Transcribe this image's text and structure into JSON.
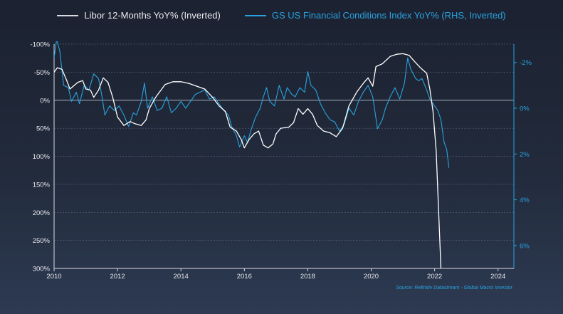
{
  "legend": {
    "series1_label": "Libor 12-Months YoY% (Inverted)",
    "series2_label": "GS US Financial Conditions Index YoY% (RHS, Inverted)"
  },
  "source_note": "Source: Refinitiv Datastream - Global Macro Investor",
  "colors": {
    "libor": "#ffffff",
    "fci": "#29a3e0",
    "grid": "#6b7587",
    "background": "#1f2636"
  },
  "chart_data": {
    "type": "line",
    "title": "",
    "xlabel": "",
    "ylabel": "",
    "xlim": [
      2010,
      2024.5
    ],
    "x_ticks": [
      "2010",
      "2012",
      "2014",
      "2016",
      "2018",
      "2020",
      "2022",
      "2024"
    ],
    "y_left": {
      "inverted": true,
      "lim": [
        -100,
        300
      ],
      "ticks": [
        -100,
        -50,
        0,
        50,
        100,
        150,
        200,
        250,
        300
      ],
      "tick_labels": [
        "-100%",
        "-50%",
        "0%",
        "50%",
        "100%",
        "150%",
        "200%",
        "250%",
        "300%"
      ]
    },
    "y_right": {
      "inverted": true,
      "lim": [
        -2.8,
        7
      ],
      "ticks": [
        -2,
        0,
        2,
        4,
        6
      ],
      "tick_labels": [
        "-2%",
        "0%",
        "2%",
        "4%",
        "6%"
      ]
    },
    "series": [
      {
        "name": "Libor 12-Months YoY% (Inverted)",
        "axis": "left",
        "points": [
          [
            2010.0,
            -50
          ],
          [
            2010.1,
            -58
          ],
          [
            2010.25,
            -55
          ],
          [
            2010.4,
            -35
          ],
          [
            2010.5,
            -20
          ],
          [
            2010.75,
            -32
          ],
          [
            2010.9,
            -35
          ],
          [
            2011.0,
            -20
          ],
          [
            2011.15,
            -18
          ],
          [
            2011.25,
            -5
          ],
          [
            2011.4,
            -18
          ],
          [
            2011.55,
            -40
          ],
          [
            2011.7,
            -32
          ],
          [
            2011.85,
            -5
          ],
          [
            2012.0,
            30
          ],
          [
            2012.2,
            45
          ],
          [
            2012.4,
            38
          ],
          [
            2012.55,
            42
          ],
          [
            2012.75,
            45
          ],
          [
            2012.9,
            35
          ],
          [
            2013.0,
            15
          ],
          [
            2013.2,
            -5
          ],
          [
            2013.5,
            -28
          ],
          [
            2013.75,
            -33
          ],
          [
            2014.0,
            -33
          ],
          [
            2014.25,
            -30
          ],
          [
            2014.5,
            -25
          ],
          [
            2014.75,
            -20
          ],
          [
            2015.0,
            -5
          ],
          [
            2015.2,
            10
          ],
          [
            2015.4,
            20
          ],
          [
            2015.55,
            48
          ],
          [
            2015.75,
            55
          ],
          [
            2015.9,
            70
          ],
          [
            2016.0,
            85
          ],
          [
            2016.15,
            70
          ],
          [
            2016.3,
            60
          ],
          [
            2016.45,
            55
          ],
          [
            2016.6,
            80
          ],
          [
            2016.75,
            85
          ],
          [
            2016.9,
            78
          ],
          [
            2017.0,
            60
          ],
          [
            2017.15,
            50
          ],
          [
            2017.4,
            48
          ],
          [
            2017.55,
            40
          ],
          [
            2017.7,
            15
          ],
          [
            2017.85,
            25
          ],
          [
            2018.0,
            15
          ],
          [
            2018.15,
            25
          ],
          [
            2018.3,
            45
          ],
          [
            2018.5,
            55
          ],
          [
            2018.7,
            58
          ],
          [
            2018.9,
            65
          ],
          [
            2019.1,
            50
          ],
          [
            2019.3,
            10
          ],
          [
            2019.55,
            -15
          ],
          [
            2019.75,
            -30
          ],
          [
            2019.9,
            -40
          ],
          [
            2020.05,
            -25
          ],
          [
            2020.15,
            -60
          ],
          [
            2020.35,
            -65
          ],
          [
            2020.6,
            -78
          ],
          [
            2020.8,
            -82
          ],
          [
            2021.0,
            -83
          ],
          [
            2021.2,
            -80
          ],
          [
            2021.35,
            -70
          ],
          [
            2021.55,
            -58
          ],
          [
            2021.75,
            -48
          ],
          [
            2021.85,
            -20
          ],
          [
            2021.95,
            20
          ],
          [
            2022.05,
            90
          ],
          [
            2022.12,
            190
          ],
          [
            2022.2,
            300
          ]
        ]
      },
      {
        "name": "GS US Financial Conditions Index YoY% (RHS, Inverted)",
        "axis": "right",
        "points": [
          [
            2010.0,
            -2.2
          ],
          [
            2010.08,
            -3.0
          ],
          [
            2010.18,
            -2.5
          ],
          [
            2010.3,
            -1.0
          ],
          [
            2010.45,
            -0.9
          ],
          [
            2010.55,
            -0.3
          ],
          [
            2010.7,
            -0.7
          ],
          [
            2010.8,
            -0.2
          ],
          [
            2010.95,
            -1.0
          ],
          [
            2011.1,
            -0.8
          ],
          [
            2011.25,
            -1.5
          ],
          [
            2011.4,
            -1.3
          ],
          [
            2011.5,
            -0.6
          ],
          [
            2011.6,
            0.3
          ],
          [
            2011.75,
            -0.1
          ],
          [
            2011.9,
            0.1
          ],
          [
            2012.05,
            -0.1
          ],
          [
            2012.2,
            0.3
          ],
          [
            2012.35,
            0.8
          ],
          [
            2012.5,
            0.2
          ],
          [
            2012.6,
            0.3
          ],
          [
            2012.75,
            -0.3
          ],
          [
            2012.85,
            -1.1
          ],
          [
            2012.95,
            0.0
          ],
          [
            2013.1,
            -0.5
          ],
          [
            2013.25,
            0.1
          ],
          [
            2013.4,
            0.0
          ],
          [
            2013.55,
            -0.5
          ],
          [
            2013.7,
            0.2
          ],
          [
            2013.85,
            0.0
          ],
          [
            2014.0,
            -0.3
          ],
          [
            2014.15,
            0.0
          ],
          [
            2014.3,
            -0.3
          ],
          [
            2014.45,
            -0.6
          ],
          [
            2014.6,
            -0.7
          ],
          [
            2014.75,
            -0.8
          ],
          [
            2014.9,
            -0.4
          ],
          [
            2015.05,
            -0.5
          ],
          [
            2015.2,
            -0.2
          ],
          [
            2015.35,
            0.1
          ],
          [
            2015.5,
            0.3
          ],
          [
            2015.6,
            0.8
          ],
          [
            2015.75,
            1.2
          ],
          [
            2015.85,
            1.7
          ],
          [
            2016.0,
            1.2
          ],
          [
            2016.1,
            1.5
          ],
          [
            2016.2,
            1.0
          ],
          [
            2016.35,
            0.4
          ],
          [
            2016.5,
            0.0
          ],
          [
            2016.6,
            -0.5
          ],
          [
            2016.7,
            -0.9
          ],
          [
            2016.8,
            -0.3
          ],
          [
            2016.95,
            -0.1
          ],
          [
            2017.1,
            -1.0
          ],
          [
            2017.25,
            -0.4
          ],
          [
            2017.35,
            -0.9
          ],
          [
            2017.5,
            -0.6
          ],
          [
            2017.6,
            -0.5
          ],
          [
            2017.75,
            -0.9
          ],
          [
            2017.9,
            -0.7
          ],
          [
            2018.0,
            -1.6
          ],
          [
            2018.1,
            -1.0
          ],
          [
            2018.25,
            -0.8
          ],
          [
            2018.4,
            -0.2
          ],
          [
            2018.55,
            0.2
          ],
          [
            2018.7,
            0.5
          ],
          [
            2018.85,
            0.6
          ],
          [
            2019.0,
            1.0
          ],
          [
            2019.15,
            0.7
          ],
          [
            2019.3,
            0.0
          ],
          [
            2019.45,
            0.3
          ],
          [
            2019.6,
            -0.3
          ],
          [
            2019.75,
            -0.7
          ],
          [
            2019.9,
            -1.0
          ],
          [
            2020.05,
            -0.5
          ],
          [
            2020.2,
            0.9
          ],
          [
            2020.35,
            0.5
          ],
          [
            2020.45,
            0.0
          ],
          [
            2020.6,
            -0.5
          ],
          [
            2020.75,
            -0.9
          ],
          [
            2020.9,
            -0.4
          ],
          [
            2021.05,
            -1.1
          ],
          [
            2021.15,
            -2.2
          ],
          [
            2021.25,
            -1.7
          ],
          [
            2021.4,
            -1.3
          ],
          [
            2021.5,
            -1.2
          ],
          [
            2021.6,
            -1.3
          ],
          [
            2021.75,
            -0.8
          ],
          [
            2021.85,
            -0.4
          ],
          [
            2022.0,
            -0.1
          ],
          [
            2022.1,
            0.1
          ],
          [
            2022.2,
            0.5
          ],
          [
            2022.3,
            1.5
          ],
          [
            2022.38,
            1.8
          ],
          [
            2022.45,
            2.6
          ]
        ]
      }
    ]
  }
}
